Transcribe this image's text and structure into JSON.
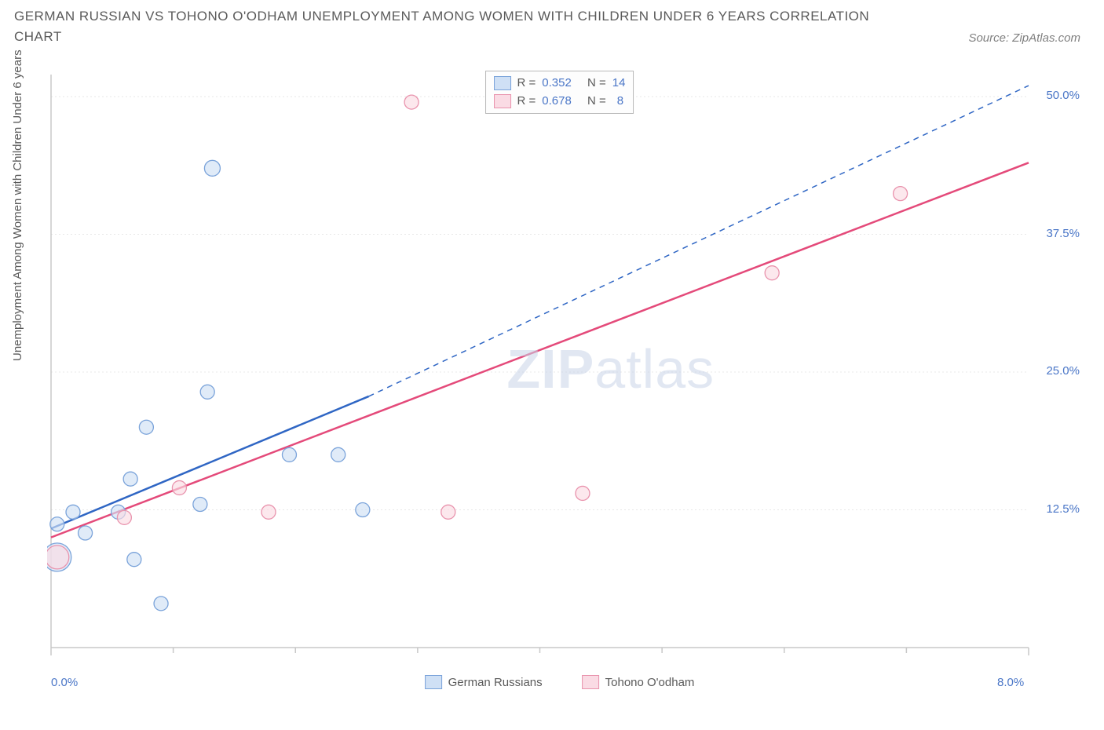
{
  "title": "GERMAN RUSSIAN VS TOHONO O'ODHAM UNEMPLOYMENT AMONG WOMEN WITH CHILDREN UNDER 6 YEARS CORRELATION CHART",
  "source": "Source: ZipAtlas.com",
  "ylabel": "Unemployment Among Women with Children Under 6 years",
  "watermark_bold": "ZIP",
  "watermark_light": "atlas",
  "chart": {
    "type": "scatter",
    "background_color": "#ffffff",
    "grid_color": "#e8e8e8",
    "axis_color": "#c8c8c8",
    "xlim": [
      0.0,
      8.0
    ],
    "ylim": [
      0.0,
      52.0
    ],
    "xticks_major": [
      0.0,
      8.0
    ],
    "xticks_minor": [
      1.0,
      2.0,
      3.0,
      4.0,
      5.0,
      6.0,
      7.0
    ],
    "yticks": [
      12.5,
      25.0,
      37.5,
      50.0
    ],
    "xtick_labels": {
      "0": "0.0%",
      "8": "8.0%"
    },
    "ytick_labels": {
      "12.5": "12.5%",
      "25": "25.0%",
      "37.5": "37.5%",
      "50": "50.0%"
    },
    "series": [
      {
        "name": "German Russians",
        "fill": "#cfe0f5",
        "stroke": "#7aa3da",
        "r_label": "R =",
        "r_value": "0.352",
        "n_label": "N =",
        "n_value": "14",
        "trend": {
          "solid_from": [
            0.0,
            10.8
          ],
          "solid_to": [
            2.6,
            22.8
          ],
          "dash_from": [
            2.6,
            22.8
          ],
          "dash_to": [
            8.0,
            51.0
          ],
          "color": "#2f66c4",
          "width": 2.5
        },
        "points": [
          {
            "x": 0.05,
            "y": 11.2,
            "r": 9
          },
          {
            "x": 0.05,
            "y": 8.2,
            "r": 18
          },
          {
            "x": 0.18,
            "y": 12.3,
            "r": 9
          },
          {
            "x": 0.28,
            "y": 10.4,
            "r": 9
          },
          {
            "x": 0.55,
            "y": 12.3,
            "r": 9
          },
          {
            "x": 0.68,
            "y": 8.0,
            "r": 9
          },
          {
            "x": 0.65,
            "y": 15.3,
            "r": 9
          },
          {
            "x": 0.78,
            "y": 20.0,
            "r": 9
          },
          {
            "x": 0.9,
            "y": 4.0,
            "r": 9
          },
          {
            "x": 1.22,
            "y": 13.0,
            "r": 9
          },
          {
            "x": 1.28,
            "y": 23.2,
            "r": 9
          },
          {
            "x": 1.32,
            "y": 43.5,
            "r": 10
          },
          {
            "x": 1.95,
            "y": 17.5,
            "r": 9
          },
          {
            "x": 2.35,
            "y": 17.5,
            "r": 9
          },
          {
            "x": 2.55,
            "y": 12.5,
            "r": 9
          }
        ]
      },
      {
        "name": "Tohono O'odham",
        "fill": "#fadbe4",
        "stroke": "#e993ad",
        "r_label": "R =",
        "r_value": "0.678",
        "n_label": "N =",
        "n_value": "8",
        "trend": {
          "solid_from": [
            0.0,
            10.0
          ],
          "solid_to": [
            8.0,
            44.0
          ],
          "color": "#e44a7a",
          "width": 2.5
        },
        "points": [
          {
            "x": 0.05,
            "y": 8.2,
            "r": 15
          },
          {
            "x": 0.6,
            "y": 11.8,
            "r": 9
          },
          {
            "x": 1.05,
            "y": 14.5,
            "r": 9
          },
          {
            "x": 1.78,
            "y": 12.3,
            "r": 9
          },
          {
            "x": 2.95,
            "y": 49.5,
            "r": 9
          },
          {
            "x": 3.25,
            "y": 12.3,
            "r": 9
          },
          {
            "x": 4.35,
            "y": 14.0,
            "r": 9
          },
          {
            "x": 5.9,
            "y": 34.0,
            "r": 9
          },
          {
            "x": 6.95,
            "y": 41.2,
            "r": 9
          }
        ]
      }
    ]
  }
}
